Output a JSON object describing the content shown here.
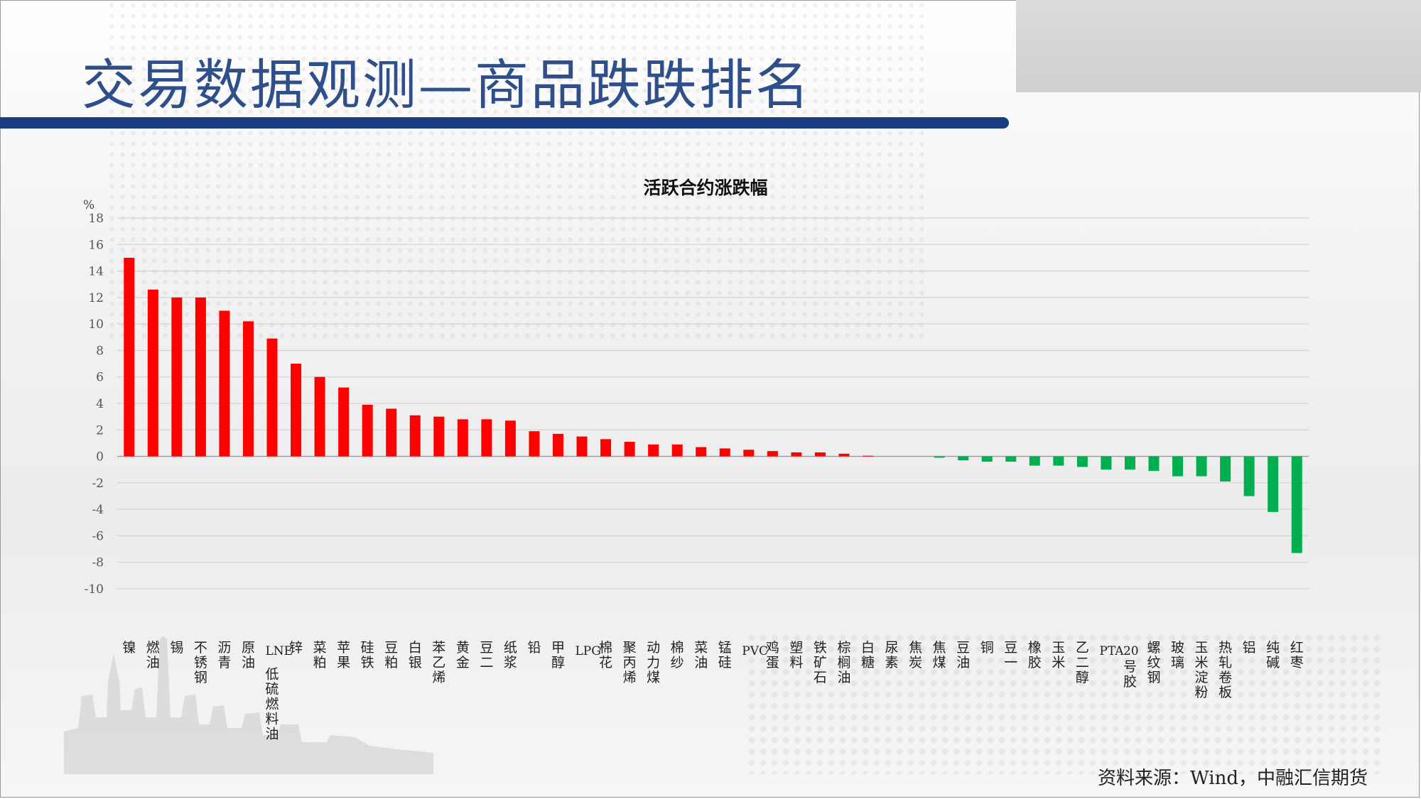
{
  "slide": {
    "title": "交易数据观测—商品跌跌排名",
    "source": "资料来源：Wind，中融汇信期货"
  },
  "colors": {
    "up": "#ff0000",
    "down": "#00b050",
    "title": "#2f4f8a",
    "title_bar": "#1a3d80"
  },
  "chart_data": {
    "type": "bar",
    "title": "活跃合约涨跌幅",
    "ylabel": "%",
    "xlabel": "",
    "ylim": [
      -10,
      18
    ],
    "yticks": [
      18,
      16,
      14,
      12,
      10,
      8,
      6,
      4,
      2,
      0,
      -2,
      -4,
      -6,
      -8,
      -10
    ],
    "grid": true,
    "legend": "none",
    "categories": [
      "镍",
      "燃油",
      "锡",
      "不锈钢",
      "沥青",
      "原油",
      "LNE低硫燃料油",
      "锌",
      "菜粕",
      "苹果",
      "硅铁",
      "豆粕",
      "白银",
      "苯乙烯",
      "黄金",
      "豆二",
      "纸浆",
      "铅",
      "甲醇",
      "LPG",
      "棉花",
      "聚丙烯",
      "动力煤",
      "棉纱",
      "菜油",
      "锰硅",
      "PVC",
      "鸡蛋",
      "塑料",
      "铁矿石",
      "棕榈油",
      "白糖",
      "尿素",
      "焦炭",
      "焦煤",
      "豆油",
      "铜",
      "豆一",
      "橡胶",
      "玉米",
      "乙二醇",
      "PTA",
      "20号胶",
      "螺纹钢",
      "玻璃",
      "玉米淀粉",
      "热轧卷板",
      "铝",
      "纯碱",
      "红枣"
    ],
    "values": [
      15.0,
      12.6,
      12.0,
      12.0,
      11.0,
      10.2,
      8.9,
      7.0,
      6.0,
      5.2,
      3.9,
      3.6,
      3.1,
      3.0,
      2.8,
      2.8,
      2.7,
      1.9,
      1.7,
      1.5,
      1.3,
      1.1,
      0.9,
      0.9,
      0.7,
      0.6,
      0.5,
      0.4,
      0.3,
      0.3,
      0.2,
      0.05,
      0.0,
      0.0,
      -0.1,
      -0.3,
      -0.4,
      -0.4,
      -0.7,
      -0.7,
      -0.8,
      -1.0,
      -1.0,
      -1.1,
      -1.5,
      -1.5,
      -1.9,
      -3.0,
      -4.2,
      -7.3
    ]
  }
}
